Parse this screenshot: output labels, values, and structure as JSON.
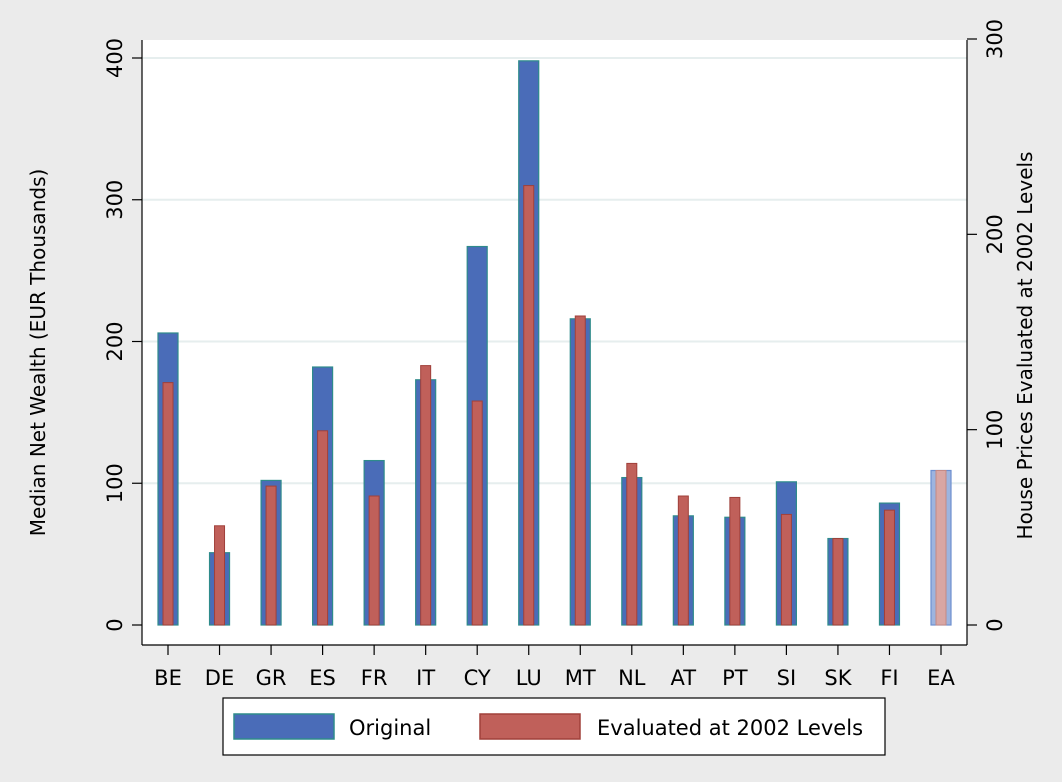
{
  "chart_data": {
    "type": "bar",
    "categories": [
      "BE",
      "DE",
      "GR",
      "ES",
      "FR",
      "IT",
      "CY",
      "LU",
      "MT",
      "NL",
      "AT",
      "PT",
      "SI",
      "SK",
      "FI",
      "EA"
    ],
    "series": [
      {
        "name": "Original",
        "values": [
          206,
          51,
          102,
          182,
          116,
          173,
          267,
          398,
          216,
          104,
          77,
          76,
          101,
          61,
          86,
          109
        ],
        "color": "#4a6cb8",
        "edge": "#2e8b8b"
      },
      {
        "name": "Evaluated at 2002 Levels",
        "values": [
          171,
          70,
          98,
          137,
          91,
          183,
          158,
          310,
          218,
          114,
          91,
          90,
          78,
          61,
          81,
          109
        ],
        "color": "#c0605a",
        "edge": "#a0403a"
      }
    ],
    "highlight_category": "EA",
    "highlight_colors": {
      "outer": "#9db4df",
      "inner": "#d9a6a3"
    },
    "ylabel": "Median Net Wealth (EUR Thousands)",
    "ylabel_right": "House Prices Evaluated at 2002 Levels",
    "ylim": [
      0,
      400
    ],
    "yticks": [
      0,
      100,
      200,
      300,
      400
    ],
    "ylim_right": [
      0,
      300
    ],
    "yticks_right": [
      0,
      100,
      200,
      300
    ],
    "legend_position": "bottom",
    "grid": true,
    "colors": {
      "background": "#ebebeb",
      "plot_bg": "#ffffff",
      "grid": "#e6eeee"
    }
  }
}
